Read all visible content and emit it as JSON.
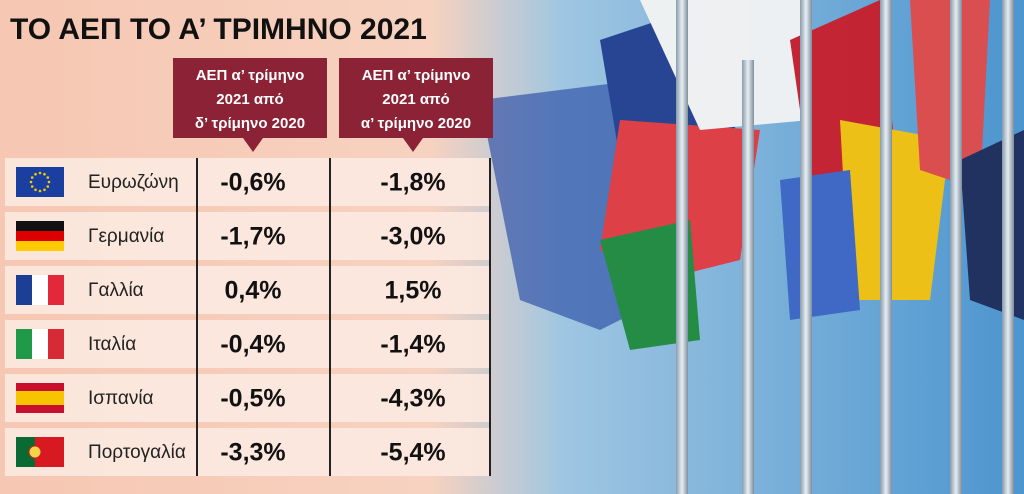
{
  "header": {
    "title": "ΤΟ ΑΕΠ ΤΟ Α’ ΤΡΙΜΗΝΟ 2021"
  },
  "table": {
    "columns": [
      {
        "lines": [
          "ΑΕΠ α’ τρίμηνο",
          "2021 από",
          "δ’ τρίμηνο 2020"
        ]
      },
      {
        "lines": [
          "ΑΕΠ α’ τρίμηνο",
          "2021 από",
          "α’ τρίμηνο 2020"
        ]
      }
    ],
    "rows": [
      [
        "Ευρωζώνη",
        "-0,6%",
        "-1,8%"
      ],
      [
        "Γερμανία",
        "-1,7%",
        "-3,0%"
      ],
      [
        "Γαλλία",
        "0,4%",
        "1,5%"
      ],
      [
        "Ιταλία",
        "-0,4%",
        "-1,4%"
      ],
      [
        "Ισπανία",
        "-0,5%",
        "-4,3%"
      ],
      [
        "Πορτογαλία",
        "-3,3%",
        "-5,4%"
      ]
    ]
  }
}
